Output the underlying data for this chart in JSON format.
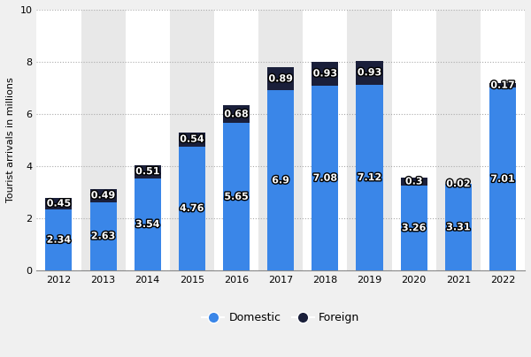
{
  "years": [
    "2012",
    "2013",
    "2014",
    "2015",
    "2016",
    "2017",
    "2018",
    "2019",
    "2020",
    "2021",
    "2022"
  ],
  "domestic": [
    2.34,
    2.63,
    3.54,
    4.76,
    5.65,
    6.9,
    7.08,
    7.12,
    3.26,
    3.31,
    7.01
  ],
  "foreign": [
    0.45,
    0.49,
    0.51,
    0.54,
    0.68,
    0.89,
    0.93,
    0.93,
    0.3,
    0.02,
    0.17
  ],
  "domestic_color": "#3a86e8",
  "foreign_color": "#1a1f3a",
  "bg_color": "#f0f0f0",
  "plot_bg_white": "#ffffff",
  "plot_bg_gray": "#e8e8e8",
  "grid_color": "#aaaaaa",
  "ylabel": "Tourist arrivals in millions",
  "ylim": [
    0,
    10
  ],
  "yticks": [
    0,
    2,
    4,
    6,
    8,
    10
  ],
  "legend_domestic": "Domestic",
  "legend_foreign": "Foreign",
  "bar_width": 0.6,
  "label_fontsize": 8,
  "axis_fontsize": 8,
  "legend_fontsize": 9,
  "text_color_white": "#ffffff",
  "text_outline": "#000000"
}
